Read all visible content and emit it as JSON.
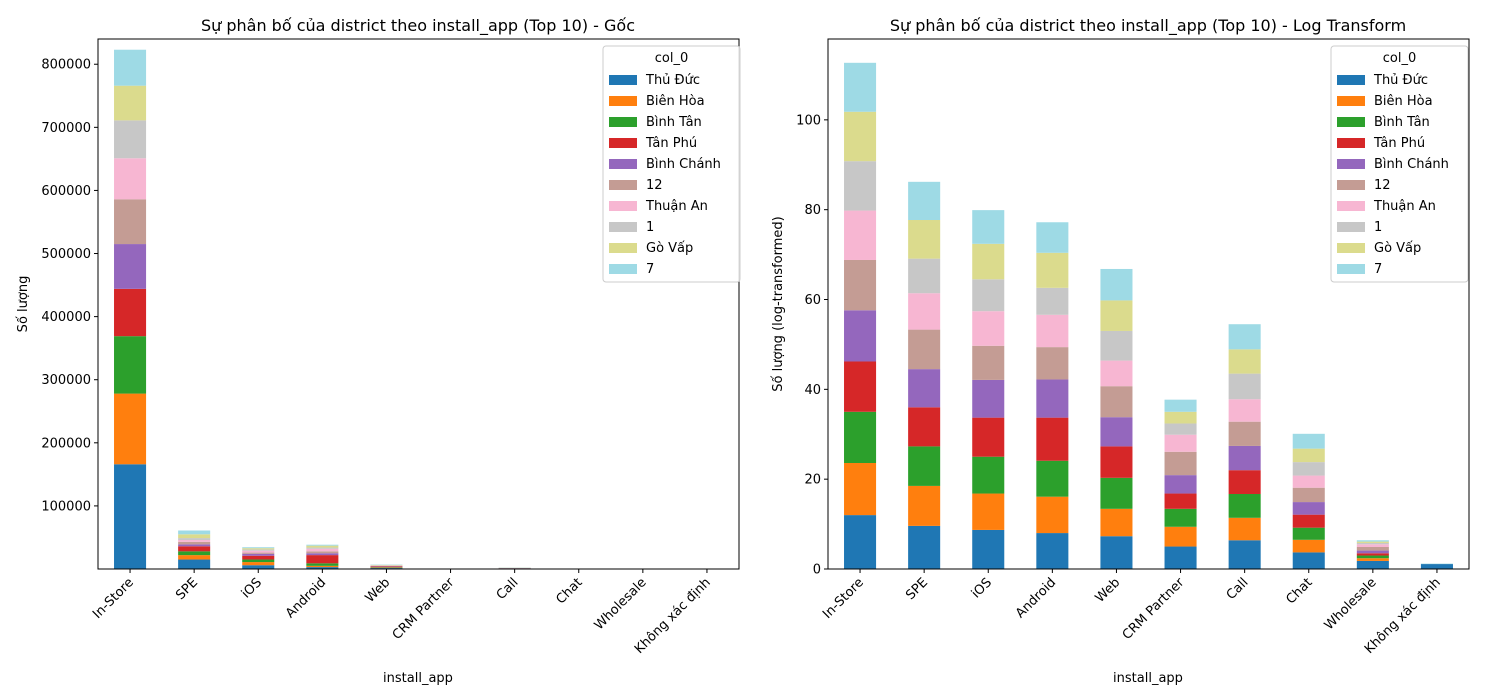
{
  "chart_data": [
    {
      "type": "bar",
      "stacked": true,
      "title": "Sự phân bố của district theo install_app (Top 10) - Gốc",
      "xlabel": "install_app",
      "ylabel": "Số lượng",
      "categories": [
        "In-Store",
        "SPE",
        "iOS",
        "Android",
        "Web",
        "CRM Partner",
        "Call",
        "Chat",
        "Wholesale",
        "Không xác định"
      ],
      "ylim": [
        0,
        840000
      ],
      "yticks": [
        100000,
        200000,
        300000,
        400000,
        500000,
        600000,
        700000,
        800000
      ],
      "ytick_labels": [
        "100000",
        "200000",
        "300000",
        "400000",
        "500000",
        "600000",
        "700000",
        "800000"
      ],
      "legend_title": "col_0",
      "legend_position": "top-right",
      "series": [
        {
          "name": "Thủ Đức",
          "color": "#1f77b4",
          "values": [
            166000,
            15000,
            6000,
            3000,
            1500,
            150,
            600,
            40,
            6,
            2
          ]
        },
        {
          "name": "Biên Hòa",
          "color": "#ff7f0e",
          "values": [
            112000,
            7000,
            5000,
            2000,
            600,
            80,
            200,
            25,
            4,
            0
          ]
        },
        {
          "name": "Bình Tân",
          "color": "#2ca02c",
          "values": [
            91000,
            6000,
            4000,
            4000,
            800,
            60,
            200,
            15,
            2,
            0
          ]
        },
        {
          "name": "Tân Phú",
          "color": "#d62728",
          "values": [
            75000,
            8000,
            6000,
            13000,
            1000,
            30,
            150,
            15,
            2,
            0
          ]
        },
        {
          "name": "Bình Chánh",
          "color": "#9467bd",
          "values": [
            71000,
            3000,
            3000,
            3000,
            700,
            50,
            300,
            10,
            2,
            0
          ]
        },
        {
          "name": "12",
          "color": "#c49c94",
          "values": [
            71000,
            4000,
            2000,
            3000,
            500,
            170,
            200,
            25,
            3,
            0
          ]
        },
        {
          "name": "Thuận An",
          "color": "#f7b6d2",
          "values": [
            65000,
            3000,
            3000,
            4000,
            300,
            60,
            150,
            10,
            2,
            0
          ]
        },
        {
          "name": "1",
          "color": "#c7c7c7",
          "values": [
            60000,
            3000,
            2000,
            2000,
            300,
            15,
            200,
            25,
            1,
            0
          ]
        },
        {
          "name": "Gò Vấp",
          "color": "#dbdb8d",
          "values": [
            55000,
            6000,
            2000,
            3000,
            800,
            40,
            200,
            20,
            1,
            0
          ]
        },
        {
          "name": "7",
          "color": "#9edae5",
          "values": [
            57000,
            6000,
            1500,
            1500,
            600,
            30,
            250,
            30,
            1,
            0
          ]
        }
      ]
    },
    {
      "type": "bar",
      "stacked": true,
      "title": "Sự phân bố của district theo install_app (Top 10) - Log Transform",
      "xlabel": "install_app",
      "ylabel": "Số lượng (log-transformed)",
      "categories": [
        "In-Store",
        "SPE",
        "iOS",
        "Android",
        "Web",
        "CRM Partner",
        "Call",
        "Chat",
        "Wholesale",
        "Không xác định"
      ],
      "ylim": [
        0,
        118
      ],
      "yticks": [
        0,
        20,
        40,
        60,
        80,
        100
      ],
      "ytick_labels": [
        "0",
        "20",
        "40",
        "60",
        "80",
        "100"
      ],
      "legend_title": "col_0",
      "legend_position": "top-right",
      "series": [
        {
          "name": "Thủ Đức",
          "color": "#1f77b4",
          "values": [
            12.0,
            9.6,
            8.7,
            8.0,
            7.3,
            5.0,
            6.4,
            3.7,
            1.8,
            1.1
          ]
        },
        {
          "name": "Biên Hòa",
          "color": "#ff7f0e",
          "values": [
            11.6,
            8.9,
            8.1,
            8.1,
            6.1,
            4.4,
            5.0,
            2.8,
            0.6,
            0.0
          ]
        },
        {
          "name": "Bình Tân",
          "color": "#2ca02c",
          "values": [
            11.4,
            8.8,
            8.2,
            8.0,
            6.9,
            4.0,
            5.3,
            2.7,
            0.6,
            0.0
          ]
        },
        {
          "name": "Tân Phú",
          "color": "#d62728",
          "values": [
            11.2,
            8.7,
            8.7,
            9.6,
            7.0,
            3.4,
            5.3,
            2.9,
            0.5,
            0.0
          ]
        },
        {
          "name": "Bình Chánh",
          "color": "#9467bd",
          "values": [
            11.4,
            8.5,
            8.4,
            8.5,
            6.5,
            4.1,
            5.4,
            2.8,
            0.6,
            0.0
          ]
        },
        {
          "name": "12",
          "color": "#c49c94",
          "values": [
            11.2,
            8.8,
            7.6,
            7.2,
            6.9,
            5.2,
            5.4,
            3.2,
            0.8,
            0.0
          ]
        },
        {
          "name": "Thuận An",
          "color": "#f7b6d2",
          "values": [
            11.0,
            8.1,
            7.7,
            7.2,
            5.7,
            3.8,
            5.0,
            2.7,
            0.6,
            0.0
          ]
        },
        {
          "name": "1",
          "color": "#c7c7c7",
          "values": [
            11.0,
            7.7,
            7.1,
            6.0,
            6.6,
            2.5,
            5.7,
            3.0,
            0.3,
            0.0
          ]
        },
        {
          "name": "Gò Vấp",
          "color": "#dbdb8d",
          "values": [
            11.0,
            8.6,
            7.9,
            7.8,
            6.8,
            2.6,
            5.4,
            3.0,
            0.3,
            0.0
          ]
        },
        {
          "name": "7",
          "color": "#9edae5",
          "values": [
            10.9,
            8.5,
            7.5,
            6.8,
            7.0,
            2.7,
            5.6,
            3.3,
            0.3,
            0.1
          ]
        }
      ]
    }
  ]
}
